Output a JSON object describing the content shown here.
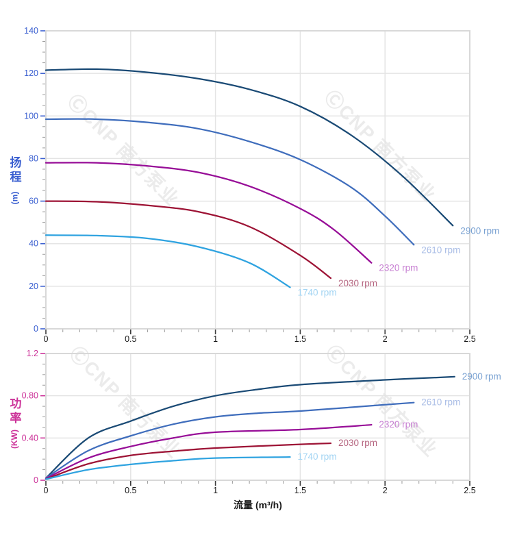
{
  "watermark": {
    "text": "ⒸCNP 南方泵业",
    "color": "#ebebeb"
  },
  "style": {
    "grid_color": "#e4e4e4",
    "frame_color": "#d8d8d8",
    "x_tick_text_color": "#1a1a1a",
    "minor_tick_color": "#9a9a9a",
    "background": "#ffffff"
  },
  "chart_data": [
    {
      "id": "head",
      "type": "line",
      "title": "",
      "ylabel_text": "扬程",
      "ylabel_unit": "(m)",
      "ylabel": "扬程 (m)",
      "xlabel": "",
      "axis_color": "#3a5fd0",
      "xlim": [
        0,
        2.5
      ],
      "ylim": [
        0,
        140
      ],
      "x_ticks": [
        0,
        0.5,
        1,
        1.5,
        2,
        2.5
      ],
      "x_tick_labels": [
        "0",
        "0.5",
        "1",
        "1.5",
        "2",
        "2.5"
      ],
      "x_minor_step": 0.1,
      "y_ticks": [
        0,
        20,
        40,
        60,
        80,
        100,
        120,
        140
      ],
      "y_tick_labels": [
        "0",
        "20",
        "40",
        "60",
        "80",
        "100",
        "120",
        "140"
      ],
      "y_minor_step": 5,
      "grid": true,
      "legend_position": "curve-end-labels",
      "series": [
        {
          "name": "2900 rpm",
          "color": "#1a4a75",
          "label_color": "#7aa2d2",
          "points": [
            [
              0,
              121.5
            ],
            [
              0.3,
              122
            ],
            [
              0.6,
              120.5
            ],
            [
              0.9,
              117.5
            ],
            [
              1.2,
              112.5
            ],
            [
              1.5,
              104.5
            ],
            [
              1.8,
              91
            ],
            [
              2.1,
              72
            ],
            [
              2.4,
              48.5
            ]
          ]
        },
        {
          "name": "2610 rpm",
          "color": "#3f6dbc",
          "label_color": "#a9bde6",
          "points": [
            [
              0,
              98.5
            ],
            [
              0.3,
              98.5
            ],
            [
              0.6,
              97
            ],
            [
              0.9,
              94
            ],
            [
              1.2,
              88
            ],
            [
              1.5,
              79.5
            ],
            [
              1.8,
              66.5
            ],
            [
              2.0,
              53
            ],
            [
              2.17,
              39.5
            ]
          ]
        },
        {
          "name": "2320 rpm",
          "color": "#970d97",
          "label_color": "#c77fd2",
          "points": [
            [
              0,
              78
            ],
            [
              0.3,
              78
            ],
            [
              0.6,
              76.5
            ],
            [
              0.9,
              73.5
            ],
            [
              1.2,
              67
            ],
            [
              1.5,
              56.5
            ],
            [
              1.7,
              46.5
            ],
            [
              1.92,
              31
            ]
          ]
        },
        {
          "name": "2030 rpm",
          "color": "#9d1335",
          "label_color": "#b5647f",
          "points": [
            [
              0,
              60
            ],
            [
              0.3,
              59.7
            ],
            [
              0.6,
              58
            ],
            [
              0.9,
              55
            ],
            [
              1.2,
              48
            ],
            [
              1.5,
              34.5
            ],
            [
              1.68,
              23.8
            ]
          ]
        },
        {
          "name": "1740 rpm",
          "color": "#2fa3e0",
          "label_color": "#a2d4f3",
          "points": [
            [
              0,
              44
            ],
            [
              0.3,
              43.8
            ],
            [
              0.6,
              42.5
            ],
            [
              0.9,
              38.5
            ],
            [
              1.2,
              31
            ],
            [
              1.44,
              19.5
            ]
          ]
        }
      ]
    },
    {
      "id": "power",
      "type": "line",
      "title": "",
      "ylabel_text": "功率",
      "ylabel_unit": "(KW)",
      "ylabel": "功率 (KW)",
      "xlabel": "流量 (m³/h)",
      "axis_color": "#cc3399",
      "xlim": [
        0,
        2.5
      ],
      "ylim": [
        0,
        1.2
      ],
      "x_ticks": [
        0,
        0.5,
        1,
        1.5,
        2,
        2.5
      ],
      "x_tick_labels": [
        "0",
        "0.5",
        "1",
        "1.5",
        "2",
        "2.5"
      ],
      "x_minor_step": 0.1,
      "y_ticks": [
        0,
        0.4,
        0.8,
        1.2
      ],
      "y_tick_labels": [
        "0",
        "0.40",
        "0.80",
        "1.2"
      ],
      "y_minor_step": 0.1,
      "grid": true,
      "legend_position": "curve-end-labels",
      "series": [
        {
          "name": "2900 rpm",
          "color": "#1a4a75",
          "label_color": "#7aa2d2",
          "points": [
            [
              0,
              0.02
            ],
            [
              0.25,
              0.4
            ],
            [
              0.5,
              0.56
            ],
            [
              0.75,
              0.7
            ],
            [
              1,
              0.8
            ],
            [
              1.25,
              0.86
            ],
            [
              1.5,
              0.905
            ],
            [
              2,
              0.95
            ],
            [
              2.41,
              0.98
            ]
          ]
        },
        {
          "name": "2610 rpm",
          "color": "#3f6dbc",
          "label_color": "#a9bde6",
          "points": [
            [
              0,
              0.02
            ],
            [
              0.25,
              0.28
            ],
            [
              0.5,
              0.42
            ],
            [
              0.75,
              0.53
            ],
            [
              1,
              0.6
            ],
            [
              1.25,
              0.635
            ],
            [
              1.5,
              0.655
            ],
            [
              2,
              0.715
            ],
            [
              2.17,
              0.735
            ]
          ]
        },
        {
          "name": "2320 rpm",
          "color": "#970d97",
          "label_color": "#c77fd2",
          "points": [
            [
              0,
              0.015
            ],
            [
              0.25,
              0.21
            ],
            [
              0.5,
              0.32
            ],
            [
              0.75,
              0.4
            ],
            [
              1,
              0.455
            ],
            [
              1.5,
              0.48
            ],
            [
              1.92,
              0.525
            ]
          ]
        },
        {
          "name": "2030 rpm",
          "color": "#9d1335",
          "label_color": "#b5647f",
          "points": [
            [
              0,
              0.01
            ],
            [
              0.25,
              0.155
            ],
            [
              0.5,
              0.235
            ],
            [
              0.75,
              0.275
            ],
            [
              1,
              0.305
            ],
            [
              1.5,
              0.34
            ],
            [
              1.68,
              0.35
            ]
          ]
        },
        {
          "name": "1740 rpm",
          "color": "#2fa3e0",
          "label_color": "#a2d4f3",
          "points": [
            [
              0,
              0.01
            ],
            [
              0.25,
              0.1
            ],
            [
              0.5,
              0.15
            ],
            [
              0.75,
              0.185
            ],
            [
              1,
              0.21
            ],
            [
              1.44,
              0.22
            ]
          ]
        }
      ]
    }
  ]
}
